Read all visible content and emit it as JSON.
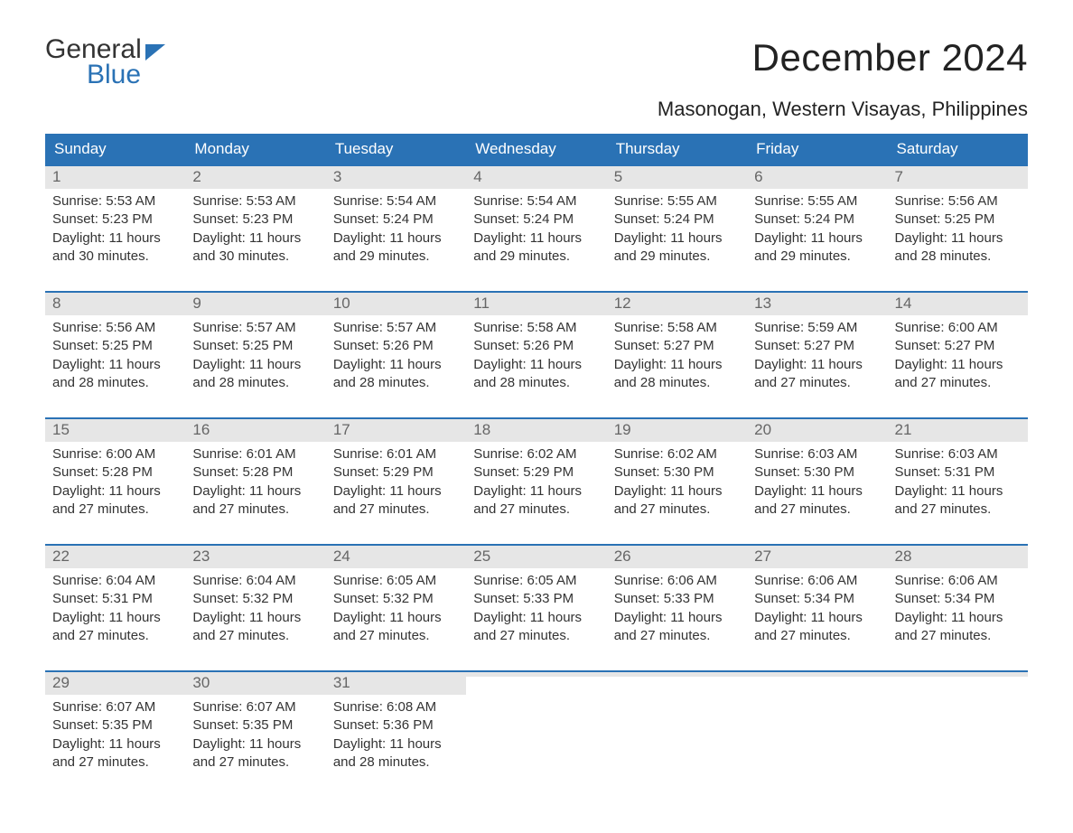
{
  "logo": {
    "word1": "General",
    "word2": "Blue"
  },
  "title": "December 2024",
  "location": "Masonogan, Western Visayas, Philippines",
  "colors": {
    "brand_blue": "#2a72b5",
    "header_text": "#ffffff",
    "daynum_bg": "#e6e6e6",
    "daynum_fg": "#666666",
    "body_text": "#333333",
    "page_bg": "#ffffff"
  },
  "day_headers": [
    "Sunday",
    "Monday",
    "Tuesday",
    "Wednesday",
    "Thursday",
    "Friday",
    "Saturday"
  ],
  "labels": {
    "sunrise": "Sunrise: ",
    "sunset": "Sunset: ",
    "daylight": "Daylight: "
  },
  "weeks": [
    [
      {
        "n": "1",
        "sunrise": "5:53 AM",
        "sunset": "5:23 PM",
        "daylight": "11 hours and 30 minutes."
      },
      {
        "n": "2",
        "sunrise": "5:53 AM",
        "sunset": "5:23 PM",
        "daylight": "11 hours and 30 minutes."
      },
      {
        "n": "3",
        "sunrise": "5:54 AM",
        "sunset": "5:24 PM",
        "daylight": "11 hours and 29 minutes."
      },
      {
        "n": "4",
        "sunrise": "5:54 AM",
        "sunset": "5:24 PM",
        "daylight": "11 hours and 29 minutes."
      },
      {
        "n": "5",
        "sunrise": "5:55 AM",
        "sunset": "5:24 PM",
        "daylight": "11 hours and 29 minutes."
      },
      {
        "n": "6",
        "sunrise": "5:55 AM",
        "sunset": "5:24 PM",
        "daylight": "11 hours and 29 minutes."
      },
      {
        "n": "7",
        "sunrise": "5:56 AM",
        "sunset": "5:25 PM",
        "daylight": "11 hours and 28 minutes."
      }
    ],
    [
      {
        "n": "8",
        "sunrise": "5:56 AM",
        "sunset": "5:25 PM",
        "daylight": "11 hours and 28 minutes."
      },
      {
        "n": "9",
        "sunrise": "5:57 AM",
        "sunset": "5:25 PM",
        "daylight": "11 hours and 28 minutes."
      },
      {
        "n": "10",
        "sunrise": "5:57 AM",
        "sunset": "5:26 PM",
        "daylight": "11 hours and 28 minutes."
      },
      {
        "n": "11",
        "sunrise": "5:58 AM",
        "sunset": "5:26 PM",
        "daylight": "11 hours and 28 minutes."
      },
      {
        "n": "12",
        "sunrise": "5:58 AM",
        "sunset": "5:27 PM",
        "daylight": "11 hours and 28 minutes."
      },
      {
        "n": "13",
        "sunrise": "5:59 AM",
        "sunset": "5:27 PM",
        "daylight": "11 hours and 27 minutes."
      },
      {
        "n": "14",
        "sunrise": "6:00 AM",
        "sunset": "5:27 PM",
        "daylight": "11 hours and 27 minutes."
      }
    ],
    [
      {
        "n": "15",
        "sunrise": "6:00 AM",
        "sunset": "5:28 PM",
        "daylight": "11 hours and 27 minutes."
      },
      {
        "n": "16",
        "sunrise": "6:01 AM",
        "sunset": "5:28 PM",
        "daylight": "11 hours and 27 minutes."
      },
      {
        "n": "17",
        "sunrise": "6:01 AM",
        "sunset": "5:29 PM",
        "daylight": "11 hours and 27 minutes."
      },
      {
        "n": "18",
        "sunrise": "6:02 AM",
        "sunset": "5:29 PM",
        "daylight": "11 hours and 27 minutes."
      },
      {
        "n": "19",
        "sunrise": "6:02 AM",
        "sunset": "5:30 PM",
        "daylight": "11 hours and 27 minutes."
      },
      {
        "n": "20",
        "sunrise": "6:03 AM",
        "sunset": "5:30 PM",
        "daylight": "11 hours and 27 minutes."
      },
      {
        "n": "21",
        "sunrise": "6:03 AM",
        "sunset": "5:31 PM",
        "daylight": "11 hours and 27 minutes."
      }
    ],
    [
      {
        "n": "22",
        "sunrise": "6:04 AM",
        "sunset": "5:31 PM",
        "daylight": "11 hours and 27 minutes."
      },
      {
        "n": "23",
        "sunrise": "6:04 AM",
        "sunset": "5:32 PM",
        "daylight": "11 hours and 27 minutes."
      },
      {
        "n": "24",
        "sunrise": "6:05 AM",
        "sunset": "5:32 PM",
        "daylight": "11 hours and 27 minutes."
      },
      {
        "n": "25",
        "sunrise": "6:05 AM",
        "sunset": "5:33 PM",
        "daylight": "11 hours and 27 minutes."
      },
      {
        "n": "26",
        "sunrise": "6:06 AM",
        "sunset": "5:33 PM",
        "daylight": "11 hours and 27 minutes."
      },
      {
        "n": "27",
        "sunrise": "6:06 AM",
        "sunset": "5:34 PM",
        "daylight": "11 hours and 27 minutes."
      },
      {
        "n": "28",
        "sunrise": "6:06 AM",
        "sunset": "5:34 PM",
        "daylight": "11 hours and 27 minutes."
      }
    ],
    [
      {
        "n": "29",
        "sunrise": "6:07 AM",
        "sunset": "5:35 PM",
        "daylight": "11 hours and 27 minutes."
      },
      {
        "n": "30",
        "sunrise": "6:07 AM",
        "sunset": "5:35 PM",
        "daylight": "11 hours and 27 minutes."
      },
      {
        "n": "31",
        "sunrise": "6:08 AM",
        "sunset": "5:36 PM",
        "daylight": "11 hours and 28 minutes."
      },
      null,
      null,
      null,
      null
    ]
  ]
}
